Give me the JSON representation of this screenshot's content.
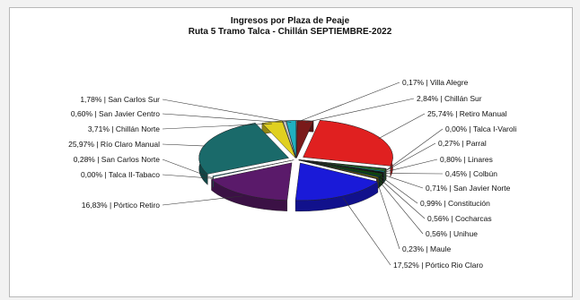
{
  "chart_data": {
    "type": "pie",
    "title": "Ingresos por Plaza de Peaje",
    "subtitle": "Ruta 5 Tramo Talca - Chillán SEPTIEMBRE-2022",
    "slices": [
      {
        "label": "0,17% | Villa Alegre",
        "value": 0.17,
        "color": "#ff7070"
      },
      {
        "label": "2,84% | Chillán Sur",
        "value": 2.84,
        "color": "#7a1a1a"
      },
      {
        "label": "25,74% | Retiro Manual",
        "value": 25.74,
        "color": "#e02020"
      },
      {
        "label": "0,00% | Talca I-Varoli",
        "value": 0.0,
        "color": "#d8d8d8"
      },
      {
        "label": "0,27% | Parral",
        "value": 0.27,
        "color": "#00204a"
      },
      {
        "label": "0,80% | Linares",
        "value": 0.8,
        "color": "#2a7a2a"
      },
      {
        "label": "0,45% | Colbún",
        "value": 0.45,
        "color": "#00a0a0"
      },
      {
        "label": "0,71% | San Javier Norte",
        "value": 0.71,
        "color": "#101010"
      },
      {
        "label": "0,99% | Constitución",
        "value": 0.99,
        "color": "#0a4a0a"
      },
      {
        "label": "0,56% | Cocharcas",
        "value": 0.56,
        "color": "#004040"
      },
      {
        "label": "0,56% | Unihue",
        "value": 0.56,
        "color": "#7a7a00"
      },
      {
        "label": "0,23% | Maule",
        "value": 0.23,
        "color": "#5a005a"
      },
      {
        "label": "17,52% | Pórtico Rio Claro",
        "value": 17.52,
        "color": "#1a1ad8"
      },
      {
        "label": "16,83% | Pórtico Retiro",
        "value": 16.83,
        "color": "#5a1a6a"
      },
      {
        "label": "0,00% | Talca II-Tabaco",
        "value": 0.0,
        "color": "#40c040"
      },
      {
        "label": "0,28% | San Carlos Norte",
        "value": 0.28,
        "color": "#30c8d8"
      },
      {
        "label": "25,97% | Río Claro Manual",
        "value": 25.97,
        "color": "#1a6a6a"
      },
      {
        "label": "3,71% | Chillán Norte",
        "value": 3.71,
        "color": "#e0d020"
      },
      {
        "label": "0,60% | San Javier Centro",
        "value": 0.6,
        "color": "#c0c0c0"
      },
      {
        "label": "1,78% | San Carlos Sur",
        "value": 1.78,
        "color": "#20b0c0"
      }
    ]
  }
}
